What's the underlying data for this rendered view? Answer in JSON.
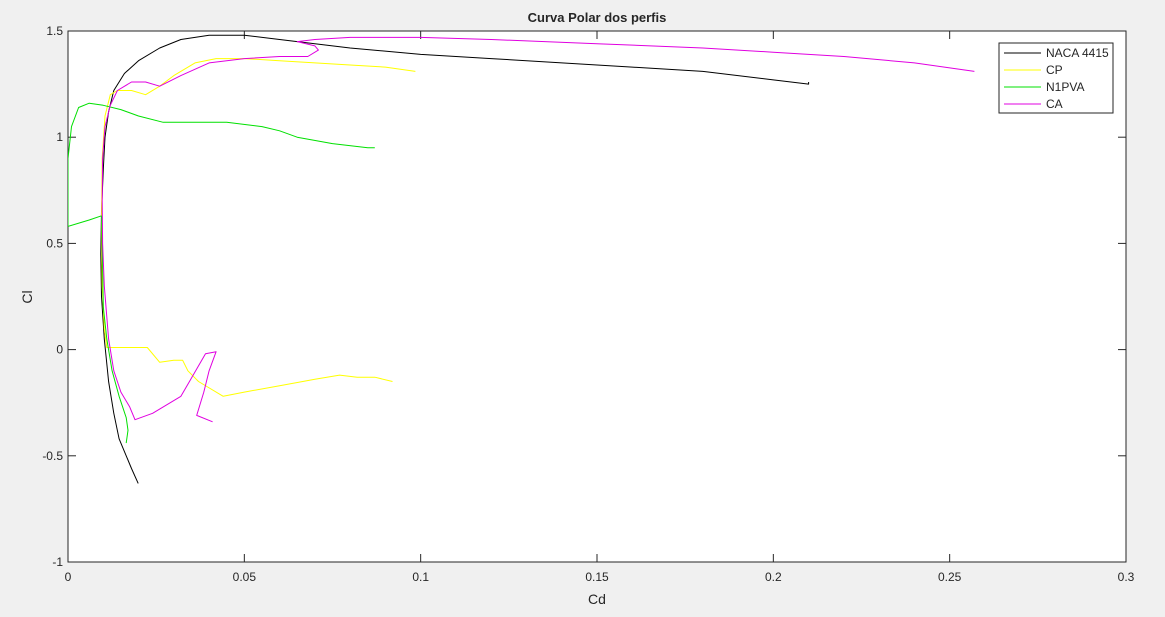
{
  "chart_data": {
    "type": "line",
    "title": "Curva Polar dos perfis",
    "xlabel": "Cd",
    "ylabel": "Cl",
    "xlim": [
      0,
      0.3
    ],
    "ylim": [
      -1,
      1.5
    ],
    "x_ticks": [
      0,
      0.05,
      0.1,
      0.15,
      0.2,
      0.25,
      0.3
    ],
    "x_tick_labels": [
      "0",
      "0.05",
      "0.1",
      "0.15",
      "0.2",
      "0.25",
      "0.3"
    ],
    "y_ticks": [
      -1,
      -0.5,
      0,
      0.5,
      1,
      1.5
    ],
    "y_tick_labels": [
      "-1",
      "-0.5",
      "0",
      "0.5",
      "1",
      "1.5"
    ],
    "grid": false,
    "legend_position": "top-right",
    "series": [
      {
        "name": "NACA 4415",
        "color": "#000000",
        "points": [
          [
            0.0199,
            -0.63
          ],
          [
            0.018,
            -0.56
          ],
          [
            0.0165,
            -0.5
          ],
          [
            0.0145,
            -0.42
          ],
          [
            0.013,
            -0.3
          ],
          [
            0.0115,
            -0.15
          ],
          [
            0.0103,
            0.05
          ],
          [
            0.0095,
            0.25
          ],
          [
            0.0093,
            0.45
          ],
          [
            0.0095,
            0.65
          ],
          [
            0.01,
            0.85
          ],
          [
            0.0105,
            1.0
          ],
          [
            0.0115,
            1.12
          ],
          [
            0.013,
            1.22
          ],
          [
            0.016,
            1.3
          ],
          [
            0.02,
            1.36
          ],
          [
            0.026,
            1.42
          ],
          [
            0.032,
            1.46
          ],
          [
            0.04,
            1.48
          ],
          [
            0.05,
            1.48
          ],
          [
            0.06,
            1.46
          ],
          [
            0.07,
            1.44
          ],
          [
            0.08,
            1.42
          ],
          [
            0.1,
            1.39
          ],
          [
            0.12,
            1.37
          ],
          [
            0.14,
            1.35
          ],
          [
            0.16,
            1.33
          ],
          [
            0.18,
            1.31
          ],
          [
            0.2,
            1.27
          ],
          [
            0.21,
            1.25
          ],
          [
            0.21,
            1.26
          ]
        ]
      },
      {
        "name": "CP",
        "color": "#ffff00",
        "points": [
          [
            0.0985,
            1.31
          ],
          [
            0.09,
            1.33
          ],
          [
            0.08,
            1.34
          ],
          [
            0.07,
            1.35
          ],
          [
            0.06,
            1.36
          ],
          [
            0.05,
            1.37
          ],
          [
            0.042,
            1.37
          ],
          [
            0.036,
            1.35
          ],
          [
            0.03,
            1.29
          ],
          [
            0.026,
            1.24
          ],
          [
            0.022,
            1.2
          ],
          [
            0.018,
            1.22
          ],
          [
            0.014,
            1.22
          ],
          [
            0.012,
            1.2
          ],
          [
            0.0105,
            1.1
          ],
          [
            0.0097,
            0.9
          ],
          [
            0.0095,
            0.6
          ],
          [
            0.0097,
            0.3
          ],
          [
            0.0103,
            0.1
          ],
          [
            0.011,
            0.01
          ],
          [
            0.015,
            0.01
          ],
          [
            0.0225,
            0.01
          ],
          [
            0.026,
            -0.06
          ],
          [
            0.03,
            -0.05
          ],
          [
            0.0325,
            -0.05
          ],
          [
            0.034,
            -0.1
          ],
          [
            0.037,
            -0.15
          ],
          [
            0.044,
            -0.22
          ],
          [
            0.05,
            -0.2
          ],
          [
            0.06,
            -0.17
          ],
          [
            0.07,
            -0.14
          ],
          [
            0.077,
            -0.12
          ],
          [
            0.082,
            -0.13
          ],
          [
            0.087,
            -0.13
          ],
          [
            0.092,
            -0.15
          ]
        ]
      },
      {
        "name": "N1PVA",
        "color": "#00e000",
        "points": [
          [
            0.0,
            0.58
          ],
          [
            0.0,
            0.9
          ],
          [
            0.001,
            1.05
          ],
          [
            0.003,
            1.14
          ],
          [
            0.006,
            1.16
          ],
          [
            0.01,
            1.15
          ],
          [
            0.015,
            1.13
          ],
          [
            0.02,
            1.1
          ],
          [
            0.027,
            1.07
          ],
          [
            0.035,
            1.07
          ],
          [
            0.045,
            1.07
          ],
          [
            0.055,
            1.05
          ],
          [
            0.06,
            1.03
          ],
          [
            0.065,
            1.0
          ],
          [
            0.075,
            0.97
          ],
          [
            0.085,
            0.95
          ],
          [
            0.087,
            0.95
          ]
        ],
        "extra_segments": [
          [
            [
              0.0,
              0.58
            ],
            [
              0.006,
              0.61
            ],
            [
              0.0095,
              0.63
            ]
          ],
          [
            [
              0.0095,
              0.63
            ],
            [
              0.0098,
              0.4
            ],
            [
              0.01,
              0.2
            ],
            [
              0.011,
              0.05
            ],
            [
              0.0125,
              -0.1
            ],
            [
              0.0145,
              -0.22
            ],
            [
              0.0165,
              -0.32
            ],
            [
              0.017,
              -0.38
            ],
            [
              0.0165,
              -0.44
            ]
          ]
        ]
      },
      {
        "name": "CA",
        "color": "#e000e0",
        "points": [
          [
            0.257,
            1.31
          ],
          [
            0.24,
            1.35
          ],
          [
            0.22,
            1.38
          ],
          [
            0.2,
            1.4
          ],
          [
            0.18,
            1.42
          ],
          [
            0.15,
            1.44
          ],
          [
            0.12,
            1.46
          ],
          [
            0.1,
            1.47
          ],
          [
            0.08,
            1.47
          ],
          [
            0.07,
            1.46
          ],
          [
            0.065,
            1.45
          ],
          [
            0.07,
            1.43
          ],
          [
            0.071,
            1.41
          ],
          [
            0.068,
            1.38
          ],
          [
            0.066,
            1.38
          ],
          [
            0.06,
            1.38
          ],
          [
            0.05,
            1.37
          ],
          [
            0.04,
            1.35
          ],
          [
            0.032,
            1.29
          ],
          [
            0.026,
            1.24
          ],
          [
            0.022,
            1.26
          ],
          [
            0.018,
            1.26
          ],
          [
            0.014,
            1.22
          ],
          [
            0.012,
            1.15
          ],
          [
            0.0105,
            1.05
          ],
          [
            0.0098,
            0.9
          ],
          [
            0.0097,
            0.7
          ],
          [
            0.0098,
            0.5
          ],
          [
            0.0103,
            0.3
          ],
          [
            0.0115,
            0.05
          ],
          [
            0.013,
            -0.1
          ],
          [
            0.015,
            -0.2
          ],
          [
            0.0175,
            -0.27
          ],
          [
            0.019,
            -0.33
          ],
          [
            0.024,
            -0.3
          ],
          [
            0.032,
            -0.22
          ],
          [
            0.039,
            -0.02
          ],
          [
            0.042,
            -0.01
          ],
          [
            0.04,
            -0.1
          ],
          [
            0.0385,
            -0.2
          ],
          [
            0.0365,
            -0.31
          ],
          [
            0.041,
            -0.34
          ]
        ]
      }
    ]
  }
}
